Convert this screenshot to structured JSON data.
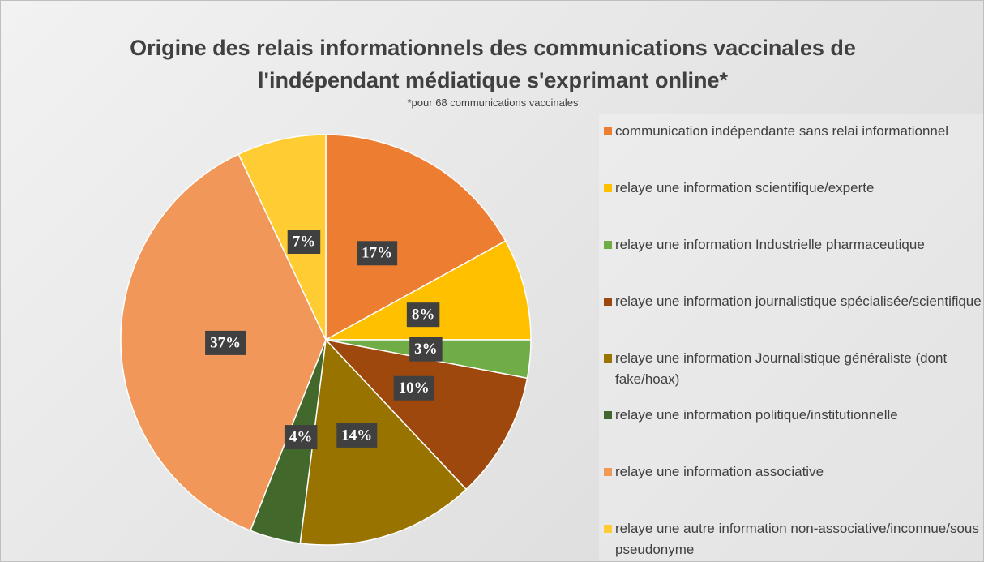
{
  "chart_data": {
    "type": "pie",
    "title": "Origine des relais informationnels des communications vaccinales de l'indépendant médiatique s'exprimant online*",
    "subtitle": "*pour 68 communications vaccinales",
    "categories": [
      "communication indépendante sans relai informationnel",
      "relaye une information scientifique/experte",
      "relaye une information Industrielle pharmaceutique",
      "relaye une information journalistique spécialisée/scientifique",
      "relaye une information Journalistique généraliste (dont fake/hoax)",
      "relaye une information politique/institutionnelle",
      "relaye une information associative",
      "relaye une autre information non-associative/inconnue/sous pseudonyme"
    ],
    "values": [
      17,
      8,
      3,
      10,
      14,
      4,
      37,
      7
    ],
    "value_labels": [
      "17%",
      "8%",
      "3%",
      "10%",
      "14%",
      "4%",
      "37%",
      "7%"
    ],
    "colors": [
      "#ED7D31",
      "#FFC000",
      "#70AD47",
      "#9E480E",
      "#997300",
      "#43682B",
      "#F1975A",
      "#FFCD33"
    ],
    "legend": "right"
  }
}
